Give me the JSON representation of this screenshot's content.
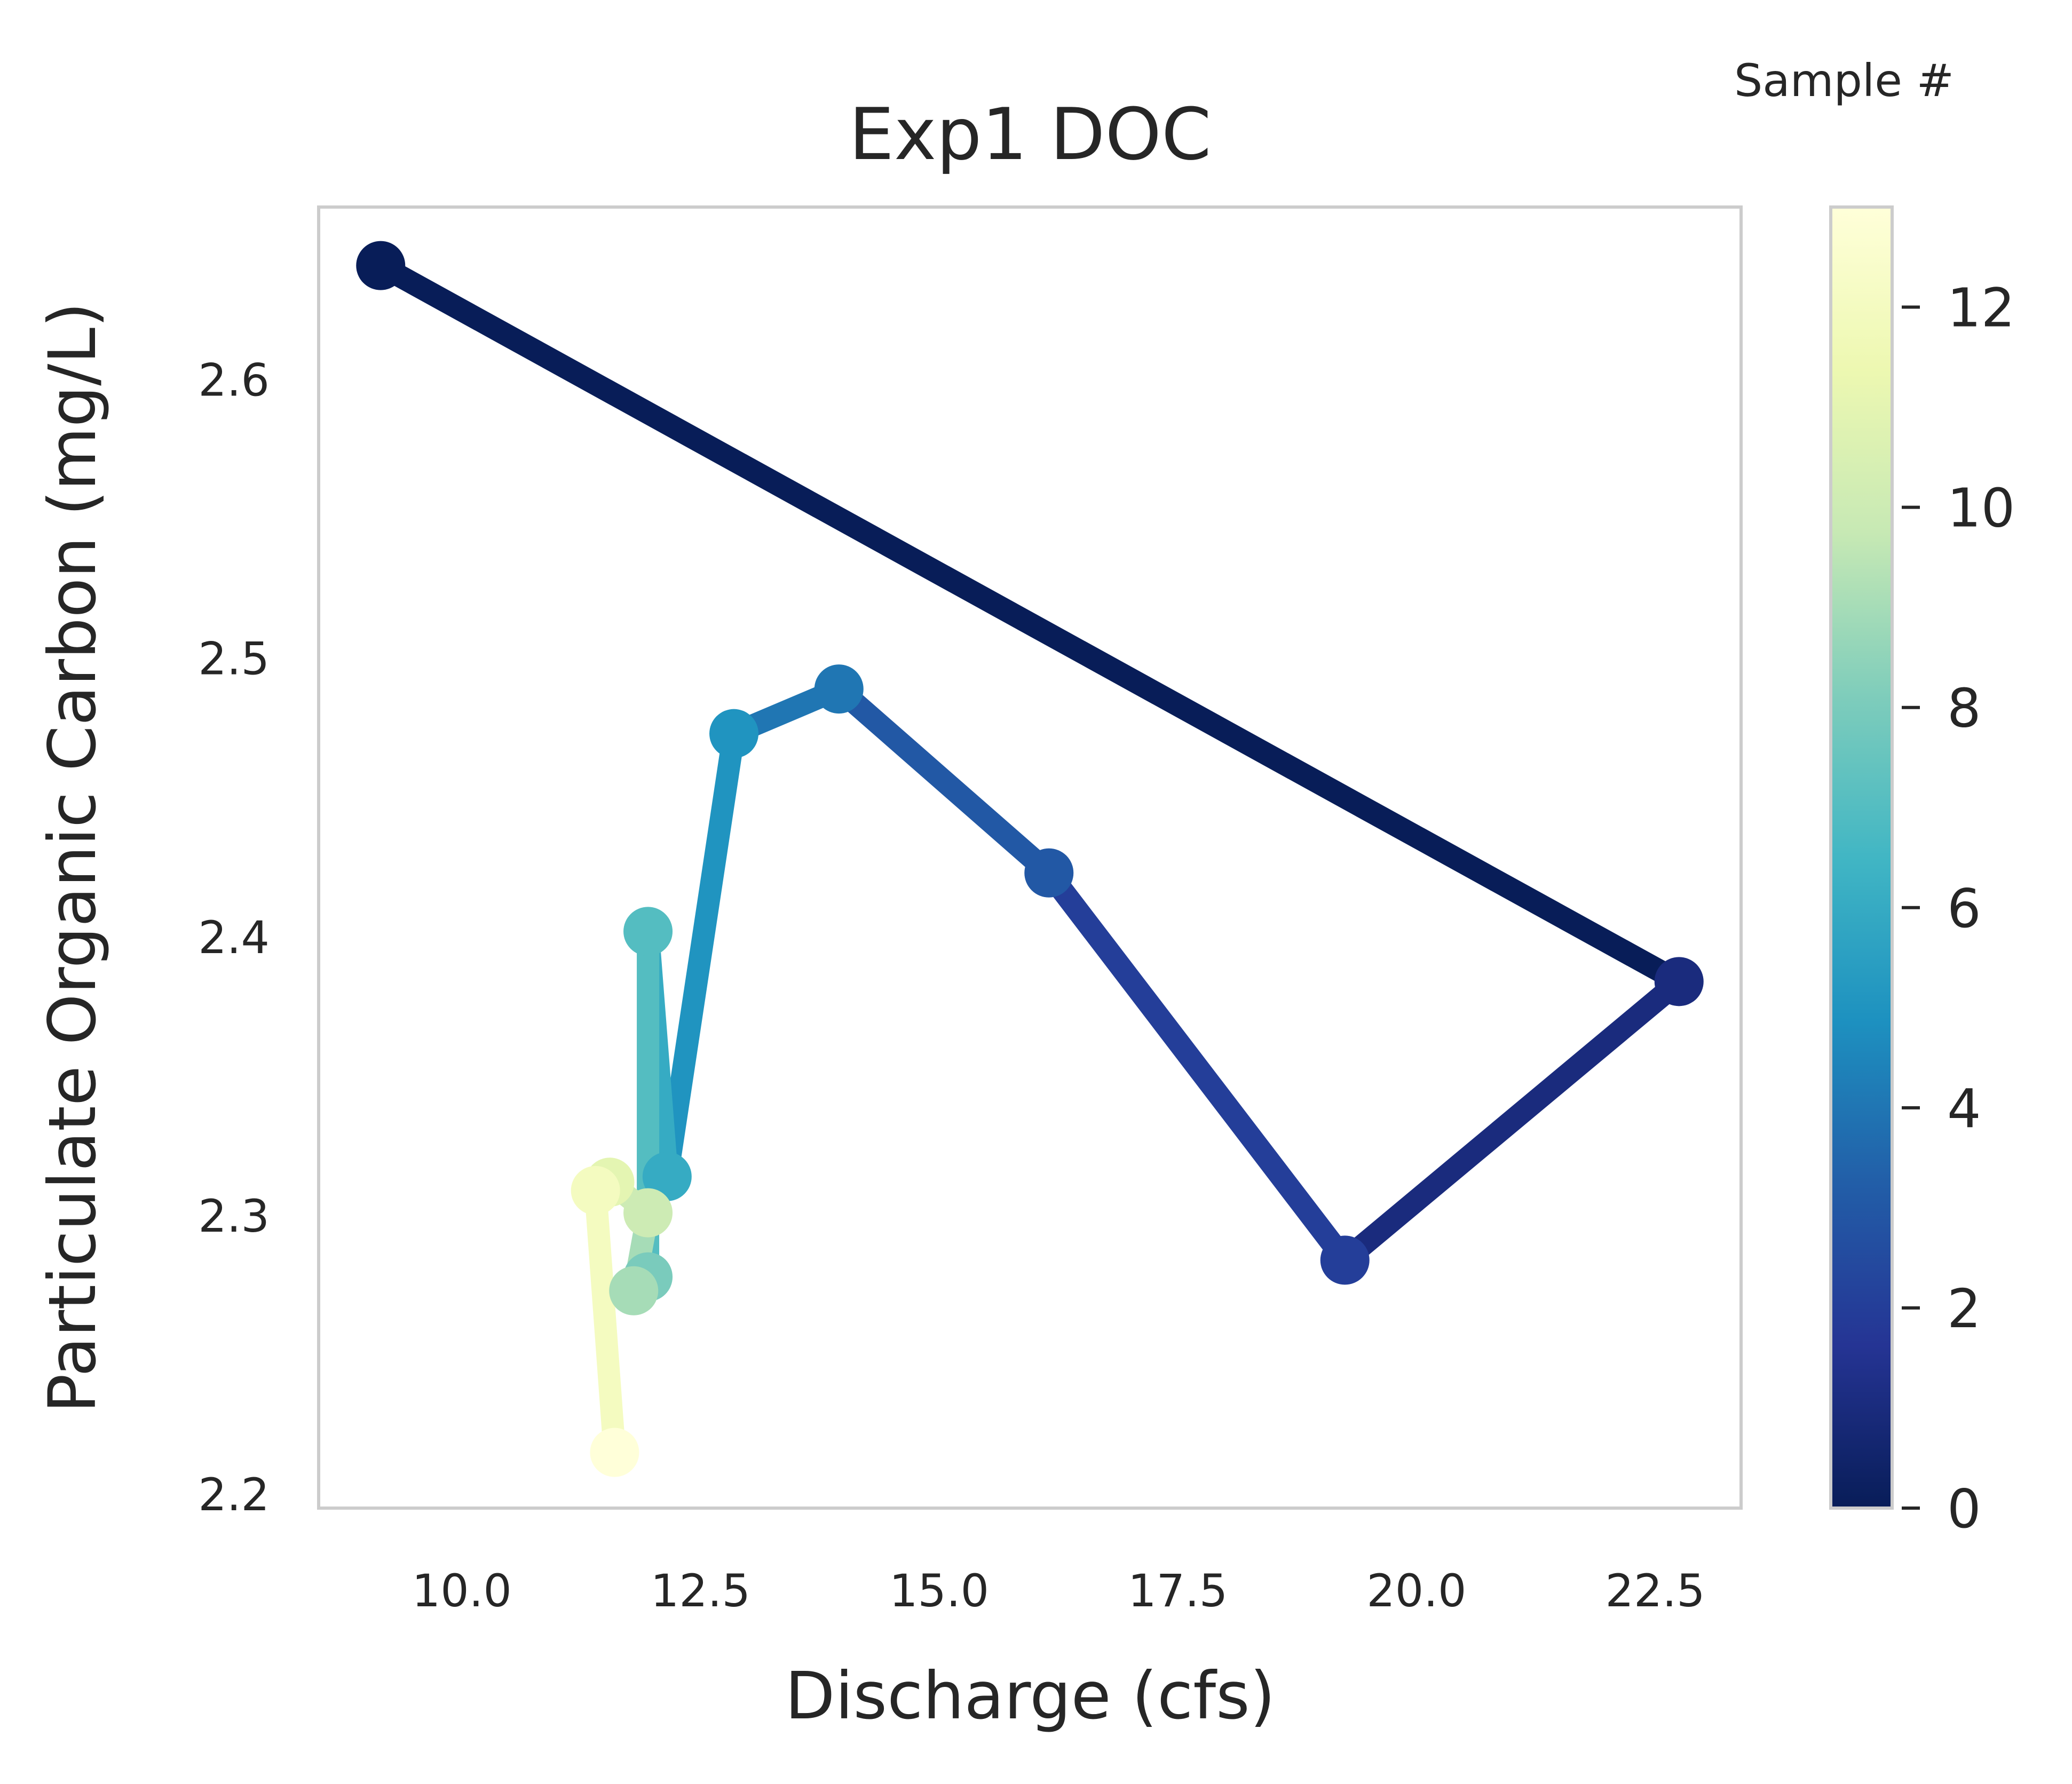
{
  "chart_data": {
    "type": "line",
    "title": "Exp1 DOC",
    "xlabel": "Discharge (cfs)",
    "ylabel": "Particulate Organic Carbon (mg/L)",
    "xlim": [
      8.5,
      23.4
    ],
    "ylim": [
      2.195,
      2.662
    ],
    "xticks": [
      10.0,
      12.5,
      15.0,
      17.5,
      20.0,
      22.5
    ],
    "xtick_labels": [
      "10.0",
      "12.5",
      "15.0",
      "17.5",
      "20.0",
      "22.5"
    ],
    "yticks": [
      2.2,
      2.3,
      2.4,
      2.5,
      2.6
    ],
    "ytick_labels": [
      "2.2",
      "2.3",
      "2.4",
      "2.5",
      "2.6"
    ],
    "grid": false,
    "colormap": "YlGnBu_r",
    "colorbar": {
      "title": "Sample #",
      "range": [
        0,
        13
      ],
      "ticks": [
        0,
        2,
        4,
        6,
        8,
        10,
        12
      ],
      "tick_labels": [
        "0",
        "2",
        "4",
        "6",
        "8",
        "10",
        "12"
      ]
    },
    "series": [
      {
        "sample": [
          0,
          1,
          2,
          3,
          4,
          5,
          6,
          7,
          8,
          9,
          10,
          11,
          12,
          13
        ],
        "x": [
          9.15,
          22.75,
          19.25,
          16.15,
          13.95,
          12.85,
          12.15,
          11.95,
          11.95,
          11.8,
          11.95,
          11.55,
          11.4,
          11.6
        ],
        "y": [
          2.641,
          2.384,
          2.284,
          2.423,
          2.489,
          2.473,
          2.314,
          2.402,
          2.278,
          2.273,
          2.301,
          2.312,
          2.309,
          2.215
        ]
      }
    ]
  }
}
